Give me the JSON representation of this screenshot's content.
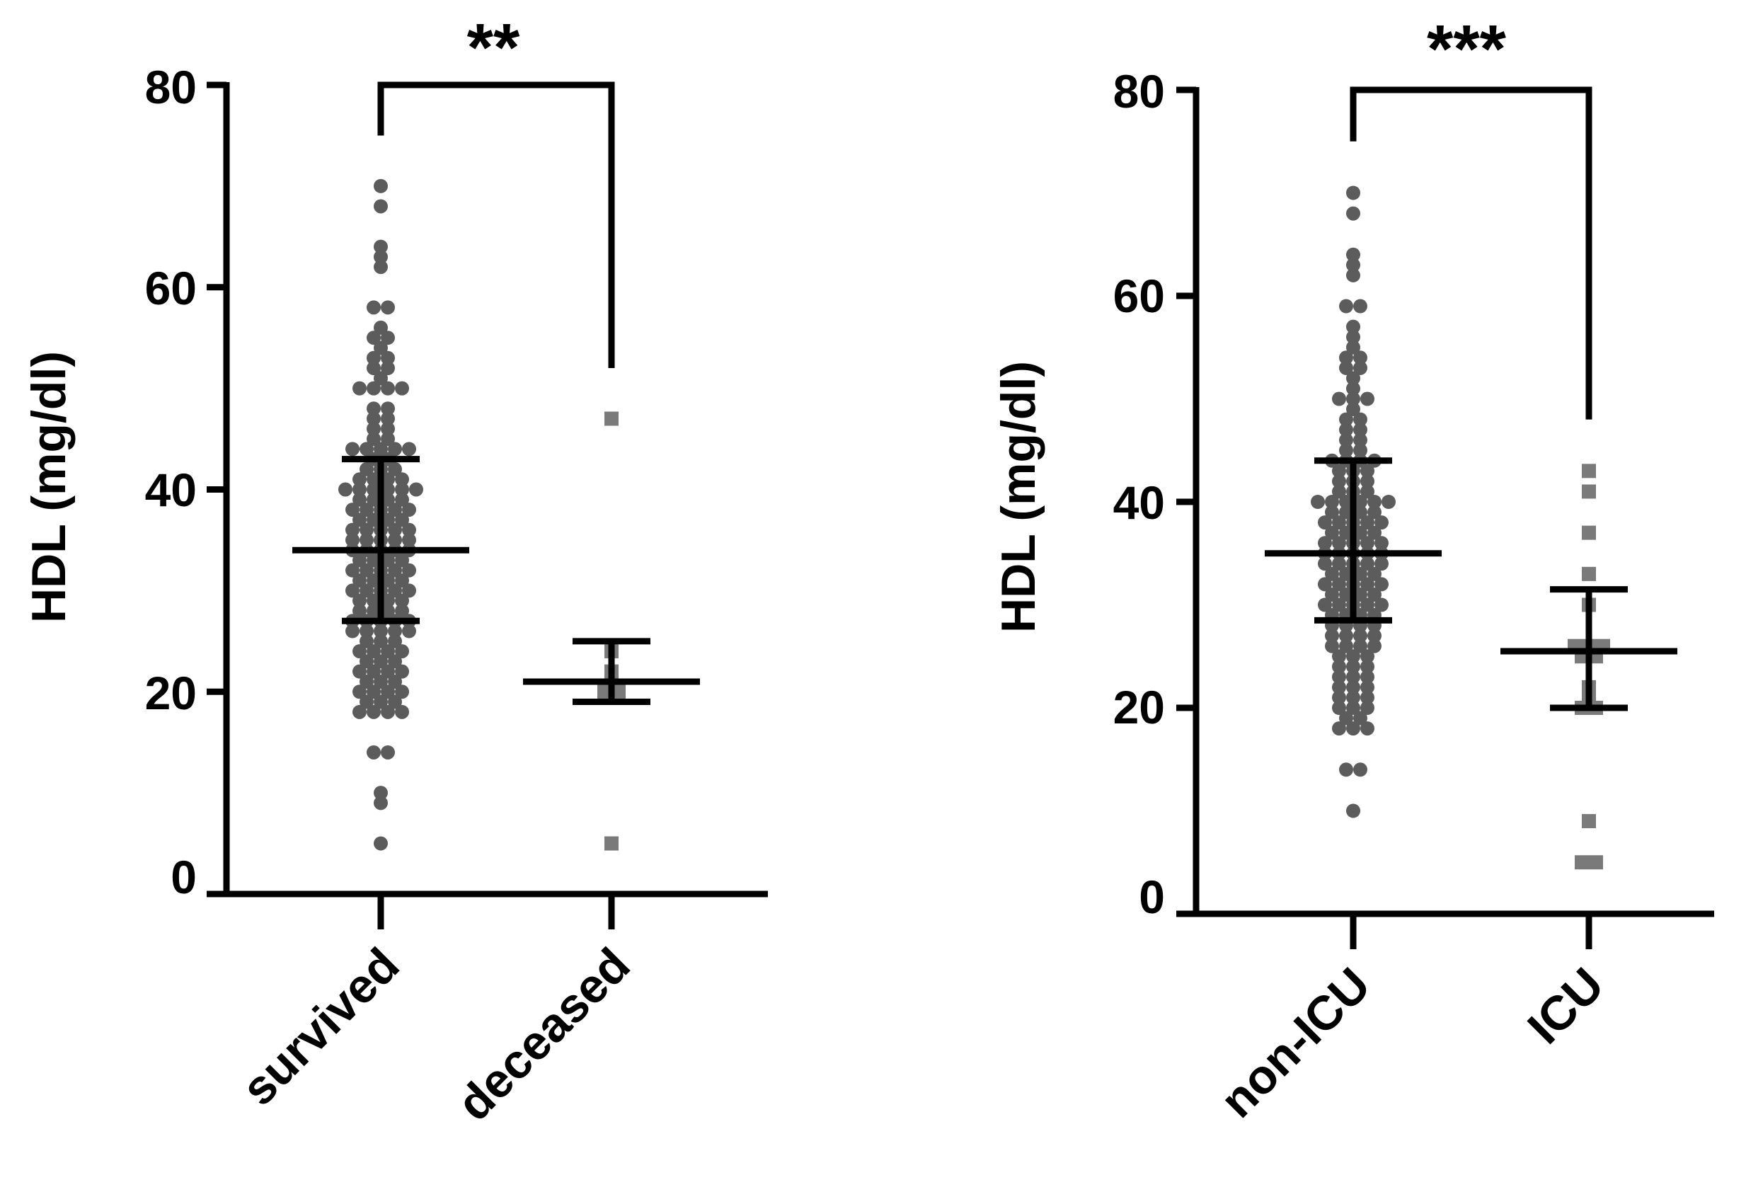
{
  "colors": {
    "point_survived": "#5c5c5c",
    "point_deceased": "#7a7a7a",
    "axis": "#000000"
  },
  "chart_data": [
    {
      "type": "scatter",
      "subtype": "dot-plot with median and interquartile range",
      "ylabel": "HDL (mg/dl)",
      "xlabel": "",
      "ylim": [
        0,
        80
      ],
      "yticks": [
        0,
        20,
        40,
        60,
        80
      ],
      "categories": [
        "survived",
        "deceased"
      ],
      "groups": [
        {
          "name": "survived",
          "marker": "circle",
          "median": 34,
          "q1": 27,
          "q3": 43,
          "values": [
            70,
            68,
            64,
            63,
            62,
            58,
            58,
            56,
            55,
            55,
            54,
            53,
            53,
            52,
            52,
            51,
            50,
            50,
            50,
            50,
            48,
            48,
            47,
            47,
            46,
            46,
            45,
            45,
            44,
            44,
            44,
            44,
            44,
            43,
            43,
            42,
            42,
            42,
            41,
            41,
            41,
            41,
            40,
            40,
            40,
            40,
            40,
            40,
            39,
            39,
            39,
            39,
            38,
            38,
            38,
            38,
            38,
            37,
            37,
            37,
            37,
            36,
            36,
            36,
            36,
            36,
            35,
            35,
            35,
            35,
            35,
            34,
            34,
            34,
            34,
            34,
            33,
            33,
            33,
            33,
            32,
            32,
            32,
            32,
            32,
            31,
            31,
            31,
            31,
            30,
            30,
            30,
            30,
            30,
            29,
            29,
            29,
            29,
            28,
            28,
            28,
            28,
            27,
            27,
            27,
            27,
            27,
            26,
            26,
            26,
            26,
            26,
            25,
            25,
            25,
            24,
            24,
            24,
            24,
            23,
            23,
            23,
            22,
            22,
            22,
            22,
            21,
            21,
            21,
            20,
            20,
            20,
            20,
            19,
            19,
            19,
            18,
            18,
            18,
            18,
            14,
            14,
            10,
            9,
            5
          ]
        },
        {
          "name": "deceased",
          "marker": "square",
          "median": 21,
          "q1": 19,
          "q3": 25,
          "values": [
            47,
            24,
            22,
            21,
            20,
            20,
            5
          ]
        }
      ],
      "comparison": {
        "from": "survived",
        "to": "deceased",
        "label": "**"
      }
    },
    {
      "type": "scatter",
      "subtype": "dot-plot with median and interquartile range",
      "ylabel": "HDL (mg/dl)",
      "xlabel": "",
      "ylim": [
        0,
        80
      ],
      "yticks": [
        0,
        20,
        40,
        60,
        80
      ],
      "categories": [
        "non-ICU",
        "ICU"
      ],
      "groups": [
        {
          "name": "non-ICU",
          "marker": "circle",
          "median": 35,
          "q1": 28.5,
          "q3": 44,
          "values": [
            70,
            68,
            64,
            63,
            62,
            59,
            59,
            57,
            56,
            55,
            54,
            54,
            53,
            53,
            52,
            51,
            50,
            50,
            50,
            49,
            48,
            48,
            47,
            47,
            46,
            46,
            45,
            45,
            44,
            44,
            44,
            44,
            43,
            43,
            43,
            42,
            42,
            42,
            41,
            41,
            41,
            40,
            40,
            40,
            40,
            40,
            40,
            39,
            39,
            39,
            39,
            38,
            38,
            38,
            38,
            38,
            37,
            37,
            37,
            37,
            36,
            36,
            36,
            36,
            36,
            35,
            35,
            35,
            35,
            35,
            34,
            34,
            34,
            34,
            34,
            33,
            33,
            33,
            33,
            32,
            32,
            32,
            32,
            32,
            31,
            31,
            31,
            31,
            30,
            30,
            30,
            30,
            30,
            29,
            29,
            29,
            29,
            28,
            28,
            28,
            28,
            27,
            27,
            27,
            27,
            26,
            26,
            26,
            26,
            25,
            25,
            25,
            24,
            24,
            24,
            23,
            23,
            23,
            22,
            22,
            22,
            21,
            21,
            21,
            20,
            20,
            20,
            19,
            19,
            18,
            18,
            18,
            14,
            14,
            10
          ]
        },
        {
          "name": "ICU",
          "marker": "square",
          "median": 25.5,
          "q1": 20,
          "q3": 31.5,
          "values": [
            43,
            41,
            37,
            33,
            30,
            26,
            26,
            26,
            25,
            25,
            22,
            21,
            20,
            20,
            9,
            5,
            5
          ]
        }
      ],
      "comparison": {
        "from": "non-ICU",
        "to": "ICU",
        "label": "***"
      }
    }
  ]
}
